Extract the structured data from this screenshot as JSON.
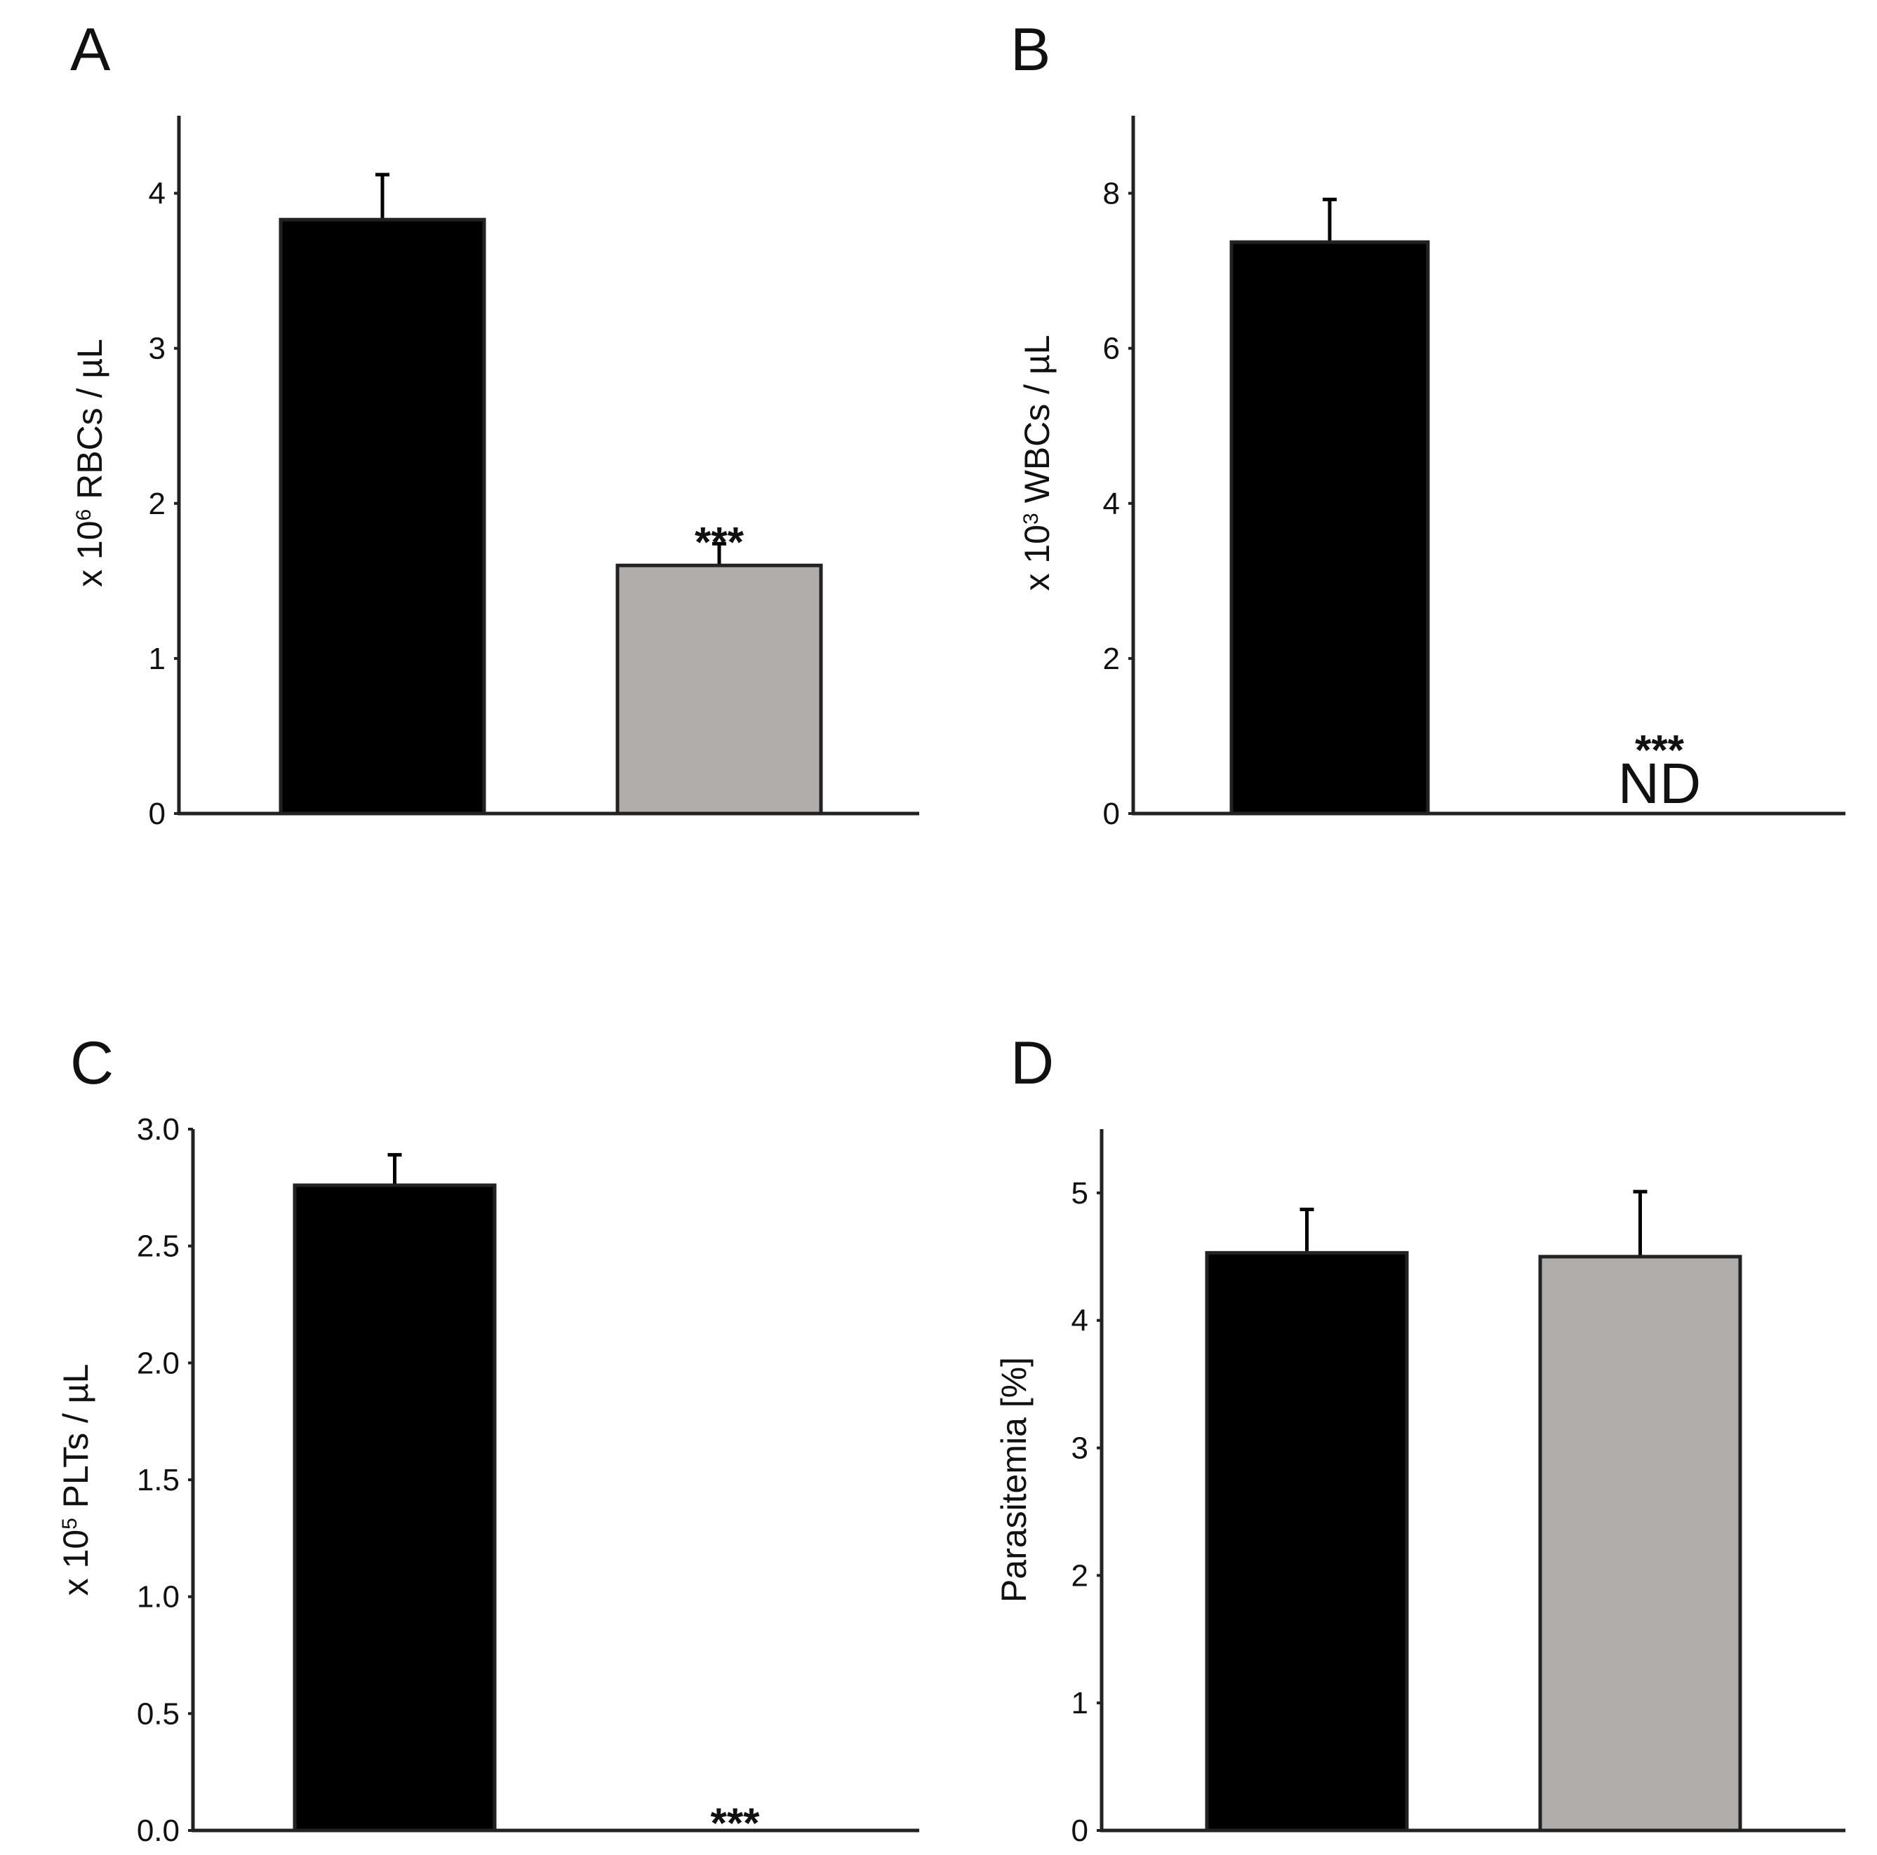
{
  "colors": {
    "bar_1": "#000000",
    "bar_2": "#b0adab",
    "axis": "#222222",
    "bar_outline": "#222222"
  },
  "chart_data": [
    {
      "panel": "A",
      "type": "bar",
      "ylabel_prefix": "x 10",
      "ylabel_exp": "6",
      "ylabel_suffix": " RBCs / µL",
      "ylim": [
        0,
        4.5
      ],
      "yticks": [
        0,
        1,
        2,
        3,
        4
      ],
      "ytick_labels": [
        "0",
        "1",
        "2",
        "3",
        "4"
      ],
      "values": [
        3.83,
        1.6
      ],
      "errors": [
        0.29,
        0.14
      ],
      "annotations": [
        "",
        "***"
      ],
      "nd_label": ""
    },
    {
      "panel": "B",
      "type": "bar",
      "ylabel_prefix": "x 10",
      "ylabel_exp": "3",
      "ylabel_suffix": " WBCs / µL",
      "ylim": [
        0,
        9
      ],
      "yticks": [
        0,
        2,
        4,
        6,
        8
      ],
      "ytick_labels": [
        "0",
        "2",
        "4",
        "6",
        "8"
      ],
      "values": [
        7.37,
        0
      ],
      "errors": [
        0.55,
        0
      ],
      "annotations": [
        "",
        "***"
      ],
      "nd_label": "ND"
    },
    {
      "panel": "C",
      "type": "bar",
      "ylabel_prefix": "x 10",
      "ylabel_exp": "5",
      "ylabel_suffix": " PLTs / µL",
      "ylim": [
        0,
        3.0
      ],
      "yticks": [
        0,
        0.5,
        1.0,
        1.5,
        2.0,
        2.5,
        3.0
      ],
      "ytick_labels": [
        "0.0",
        "0.5",
        "1.0",
        "1.5",
        "2.0",
        "2.5",
        "3.0"
      ],
      "values": [
        2.76,
        0
      ],
      "errors": [
        0.13,
        0
      ],
      "annotations": [
        "",
        "***"
      ],
      "nd_label": ""
    },
    {
      "panel": "D",
      "type": "bar",
      "ylabel_prefix": "Parasitemia [%]",
      "ylabel_exp": "",
      "ylabel_suffix": "",
      "ylim": [
        0,
        5.5
      ],
      "yticks": [
        0,
        1,
        2,
        3,
        4,
        5
      ],
      "ytick_labels": [
        "0",
        "1",
        "2",
        "3",
        "4",
        "5"
      ],
      "values": [
        4.53,
        4.5
      ],
      "errors": [
        0.34,
        0.51
      ],
      "annotations": [
        "",
        ""
      ],
      "nd_label": ""
    }
  ]
}
